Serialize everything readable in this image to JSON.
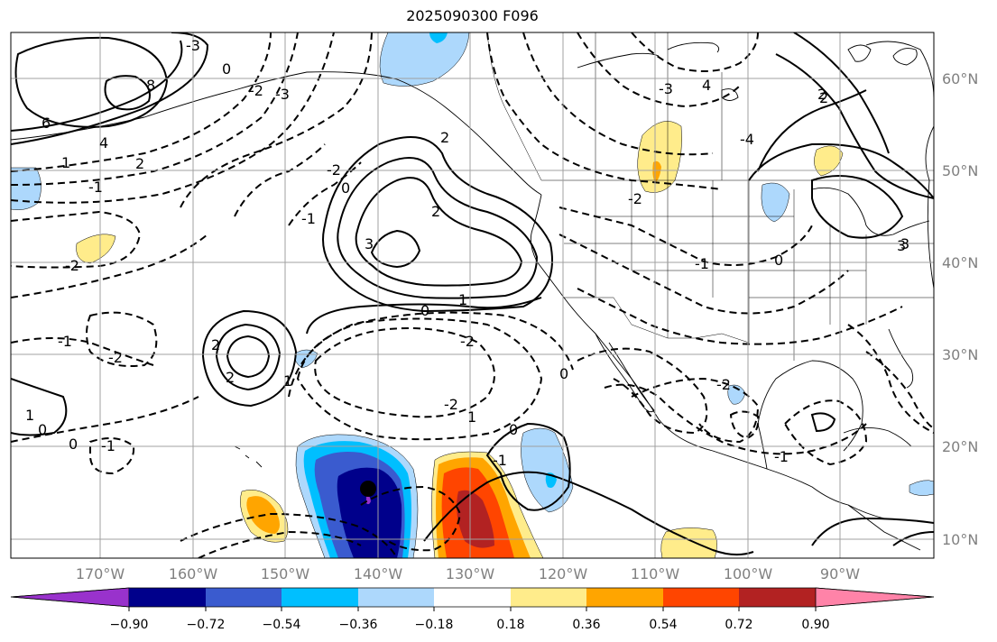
{
  "title": "2025090300 F096",
  "lat_labels": [
    "60°N",
    "50°N",
    "40°N",
    "30°N",
    "20°N",
    "10°N"
  ],
  "lon_labels": [
    "170°W",
    "160°W",
    "150°W",
    "140°W",
    "130°W",
    "120°W",
    "110°W",
    "100°W",
    "90°W"
  ],
  "colorbar": {
    "tick_labels": [
      "−0.90",
      "−0.72",
      "−0.54",
      "−0.36",
      "−0.18",
      "0.18",
      "0.36",
      "0.54",
      "0.72",
      "0.90"
    ],
    "colors": [
      "#9932cc",
      "#00008b",
      "#3a5bcf",
      "#00bfff",
      "#add8fc",
      "#ffffff",
      "#ffec8b",
      "#ffa500",
      "#ff4500",
      "#b22222",
      "#ff83a8"
    ]
  },
  "marker": "storm-center-dot",
  "contour_labels": [
    "6",
    "4",
    "2",
    "1",
    "8",
    "0",
    "-1",
    "-2",
    "3",
    "2",
    "1",
    "0",
    "-1",
    "-2",
    "-3",
    "4",
    "2",
    "0",
    "-1",
    "-2",
    "1",
    "0",
    "2",
    "-2",
    "1",
    "0",
    "-1",
    "-2",
    "2",
    "-2",
    "0",
    "-1",
    "3",
    "-3",
    "-4",
    "2",
    "0",
    "-1",
    "-2",
    "-2",
    "1",
    "0",
    "-1",
    "3",
    "2",
    "-3"
  ]
}
